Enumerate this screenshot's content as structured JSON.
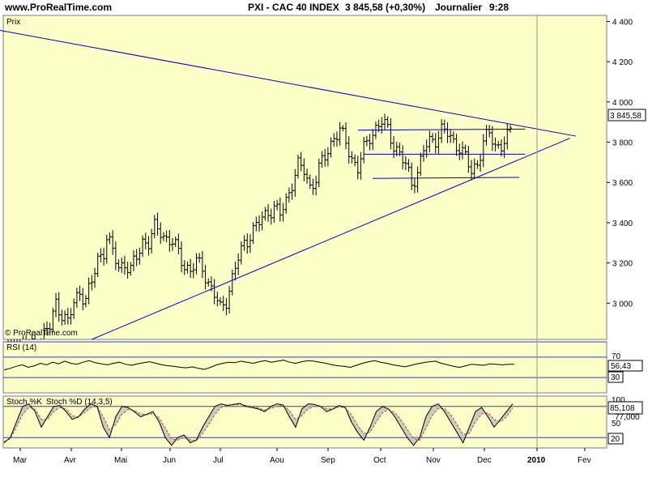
{
  "header": {
    "site": "www.ProRealTime.com",
    "title": "PXI - CAC 40 INDEX",
    "last": "3 845,58 (+0,30%)",
    "period": "Journalier",
    "time": "9:28"
  },
  "chart_data": [
    {
      "type": "ohlc",
      "panel": "price",
      "label": "Prix",
      "watermark": "© ProRealTime.com",
      "x_tick_labels": [
        "Mar",
        "Avr",
        "Mai",
        "Jun",
        "Jul",
        "Aou",
        "Sep",
        "Oct",
        "Nov",
        "Dec",
        "2010",
        "Fev"
      ],
      "y_tick_labels": [
        "3 000",
        "3 200",
        "3 400",
        "3 600",
        "3 800",
        "4 000",
        "4 200",
        "4 400"
      ],
      "ylim": [
        2820,
        4430
      ],
      "last_value_label": "3 845,58",
      "close_path": [
        {
          "x": 0,
          "y": 2720
        },
        {
          "x": 3,
          "y": 2760
        },
        {
          "x": 6,
          "y": 2800
        },
        {
          "x": 9,
          "y": 2780
        },
        {
          "x": 12,
          "y": 2850
        },
        {
          "x": 14,
          "y": 2880
        },
        {
          "x": 16,
          "y": 3000
        },
        {
          "x": 18,
          "y": 2950
        },
        {
          "x": 20,
          "y": 2900
        },
        {
          "x": 22,
          "y": 3000
        },
        {
          "x": 24,
          "y": 3060
        },
        {
          "x": 26,
          "y": 3020
        },
        {
          "x": 28,
          "y": 3100
        },
        {
          "x": 30,
          "y": 3220
        },
        {
          "x": 32,
          "y": 3260
        },
        {
          "x": 33,
          "y": 3330
        },
        {
          "x": 35,
          "y": 3250
        },
        {
          "x": 37,
          "y": 3180
        },
        {
          "x": 39,
          "y": 3200
        },
        {
          "x": 41,
          "y": 3160
        },
        {
          "x": 43,
          "y": 3230
        },
        {
          "x": 45,
          "y": 3310
        },
        {
          "x": 47,
          "y": 3300
        },
        {
          "x": 49,
          "y": 3370
        },
        {
          "x": 51,
          "y": 3360
        },
        {
          "x": 53,
          "y": 3320
        },
        {
          "x": 55,
          "y": 3300
        },
        {
          "x": 57,
          "y": 3250
        },
        {
          "x": 59,
          "y": 3190
        },
        {
          "x": 61,
          "y": 3160
        },
        {
          "x": 63,
          "y": 3200
        },
        {
          "x": 65,
          "y": 3180
        },
        {
          "x": 67,
          "y": 3100
        },
        {
          "x": 69,
          "y": 3040
        },
        {
          "x": 71,
          "y": 2970
        },
        {
          "x": 73,
          "y": 3020
        },
        {
          "x": 75,
          "y": 3120
        },
        {
          "x": 77,
          "y": 3220
        },
        {
          "x": 79,
          "y": 3300
        },
        {
          "x": 81,
          "y": 3340
        },
        {
          "x": 83,
          "y": 3380
        },
        {
          "x": 85,
          "y": 3420
        },
        {
          "x": 87,
          "y": 3460
        },
        {
          "x": 89,
          "y": 3470
        },
        {
          "x": 91,
          "y": 3440
        },
        {
          "x": 93,
          "y": 3510
        },
        {
          "x": 95,
          "y": 3600
        },
        {
          "x": 97,
          "y": 3680
        },
        {
          "x": 99,
          "y": 3660
        },
        {
          "x": 101,
          "y": 3580
        },
        {
          "x": 103,
          "y": 3620
        },
        {
          "x": 105,
          "y": 3700
        },
        {
          "x": 107,
          "y": 3760
        },
        {
          "x": 109,
          "y": 3830
        },
        {
          "x": 111,
          "y": 3850
        },
        {
          "x": 113,
          "y": 3800
        },
        {
          "x": 115,
          "y": 3720
        },
        {
          "x": 117,
          "y": 3670
        },
        {
          "x": 119,
          "y": 3760
        },
        {
          "x": 121,
          "y": 3830
        },
        {
          "x": 123,
          "y": 3870
        },
        {
          "x": 125,
          "y": 3900
        },
        {
          "x": 127,
          "y": 3860
        },
        {
          "x": 129,
          "y": 3790
        },
        {
          "x": 131,
          "y": 3740
        },
        {
          "x": 133,
          "y": 3680
        },
        {
          "x": 135,
          "y": 3600
        },
        {
          "x": 137,
          "y": 3650
        },
        {
          "x": 139,
          "y": 3760
        },
        {
          "x": 141,
          "y": 3800
        },
        {
          "x": 143,
          "y": 3820
        },
        {
          "x": 145,
          "y": 3860
        },
        {
          "x": 147,
          "y": 3840
        },
        {
          "x": 149,
          "y": 3800
        },
        {
          "x": 151,
          "y": 3780
        },
        {
          "x": 153,
          "y": 3720
        },
        {
          "x": 155,
          "y": 3650
        },
        {
          "x": 157,
          "y": 3700
        },
        {
          "x": 159,
          "y": 3800
        },
        {
          "x": 161,
          "y": 3840
        },
        {
          "x": 163,
          "y": 3780
        },
        {
          "x": 165,
          "y": 3790
        },
        {
          "x": 167,
          "y": 3820
        },
        {
          "x": 168,
          "y": 3846
        }
      ],
      "trendlines": [
        {
          "x0": -30,
          "y0": 4430,
          "x1": 190,
          "y1": 3830
        },
        {
          "x0": 28,
          "y0": 2820,
          "x1": 188,
          "y1": 3820
        },
        {
          "x0": 117,
          "y0": 3860,
          "x1": 173,
          "y1": 3865
        },
        {
          "x0": 119,
          "y0": 3740,
          "x1": 173,
          "y1": 3740
        },
        {
          "x0": 122,
          "y0": 3620,
          "x1": 171,
          "y1": 3625
        }
      ]
    },
    {
      "type": "line",
      "panel": "rsi",
      "label": "RSI (14)",
      "ylim": [
        0,
        100
      ],
      "levels": [
        30,
        70,
        100
      ],
      "level_labels": [
        "70",
        "30"
      ],
      "last_value_label": "56,43",
      "series": [
        {
          "values": [
            45,
            48,
            52,
            55,
            50,
            53,
            58,
            55,
            60,
            57,
            62,
            58,
            56,
            60,
            63,
            59,
            57,
            55,
            58,
            60,
            56,
            54,
            57,
            59,
            61,
            58,
            55,
            53,
            52,
            50,
            49,
            51,
            48,
            46,
            50,
            55,
            58,
            60,
            59,
            62,
            60,
            58,
            61,
            63,
            60,
            62,
            64,
            60,
            58,
            61,
            63,
            62,
            60,
            58,
            55,
            53,
            52,
            50,
            54,
            58,
            61,
            63,
            60,
            58,
            55,
            53,
            51,
            54,
            57,
            59,
            61,
            62,
            58,
            55,
            52,
            50,
            53,
            56,
            55,
            54,
            57,
            56,
            55,
            56,
            56
          ]
        }
      ]
    },
    {
      "type": "line",
      "panel": "stoch",
      "label": "Stoch %K",
      "label2": "Stoch %D (14,3,5)",
      "ylim": [
        0,
        100
      ],
      "levels": [
        20,
        80
      ],
      "level_labels": [
        "100",
        "50",
        "20"
      ],
      "last_value_label": "85,108",
      "secondary_value_label": "77,000",
      "series": [
        {
          "name": "Stoch %K",
          "values": [
            10,
            20,
            50,
            80,
            85,
            70,
            40,
            60,
            80,
            82,
            70,
            55,
            60,
            75,
            85,
            80,
            40,
            20,
            60,
            80,
            78,
            70,
            60,
            65,
            70,
            50,
            20,
            5,
            20,
            25,
            10,
            15,
            40,
            60,
            80,
            85,
            82,
            84,
            86,
            80,
            78,
            75,
            70,
            80,
            85,
            83,
            60,
            40,
            75,
            85,
            84,
            80,
            70,
            75,
            82,
            78,
            50,
            30,
            15,
            40,
            70,
            80,
            75,
            60,
            40,
            20,
            5,
            20,
            60,
            80,
            85,
            70,
            50,
            30,
            10,
            40,
            70,
            78,
            60,
            40,
            55,
            70,
            85
          ]
        },
        {
          "name": "Stoch %D (14,3,5)",
          "values": [
            12,
            18,
            40,
            65,
            78,
            75,
            55,
            55,
            70,
            78,
            75,
            62,
            60,
            68,
            78,
            80,
            60,
            35,
            45,
            65,
            74,
            72,
            66,
            64,
            66,
            58,
            38,
            18,
            15,
            20,
            16,
            14,
            28,
            45,
            65,
            78,
            82,
            83,
            84,
            82,
            80,
            77,
            73,
            76,
            80,
            82,
            72,
            55,
            62,
            75,
            80,
            81,
            76,
            75,
            79,
            78,
            64,
            44,
            28,
            30,
            50,
            68,
            74,
            68,
            54,
            36,
            18,
            15,
            38,
            62,
            76,
            76,
            64,
            46,
            26,
            28,
            50,
            66,
            68,
            55,
            50,
            60,
            77
          ]
        }
      ]
    }
  ]
}
